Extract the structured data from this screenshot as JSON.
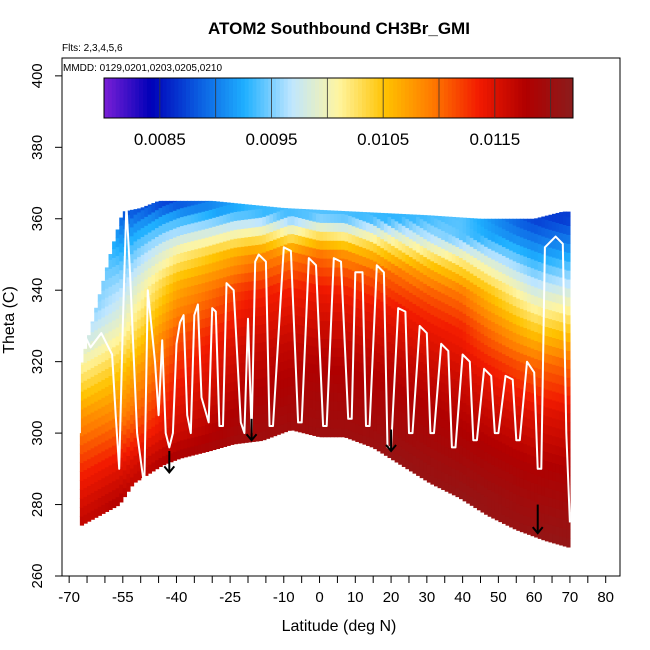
{
  "chart_data": {
    "type": "heatmap",
    "title": "ATOM2 Southbound CH3Br_GMI",
    "annotations": [
      "Flts: 2,3,4,5,6",
      "MMDD: 0129,0201,0203,0205,0210"
    ],
    "xlabel": "Latitude (deg N)",
    "ylabel": "Theta (C)",
    "xlim": [
      -72,
      84
    ],
    "ylim": [
      260,
      405
    ],
    "x_ticks": [
      -70,
      -65,
      -60,
      -55,
      -50,
      -45,
      -40,
      -35,
      -30,
      -25,
      -20,
      -15,
      -10,
      -5,
      0,
      5,
      10,
      15,
      20,
      25,
      30,
      35,
      40,
      45,
      50,
      55,
      60,
      65,
      70,
      75,
      80
    ],
    "x_tick_labels": [
      "-70",
      "",
      "",
      "-55",
      "",
      "",
      "-40",
      "",
      "",
      "-25",
      "",
      "",
      "-10",
      "",
      "0",
      "",
      "10",
      "",
      "20",
      "",
      "30",
      "",
      "40",
      "",
      "50",
      "",
      "60",
      "",
      "70",
      "",
      "80"
    ],
    "y_ticks": [
      260,
      280,
      300,
      320,
      340,
      360,
      380,
      400
    ],
    "y_tick_labels": [
      "260",
      "280",
      "300",
      "320",
      "340",
      "360",
      "380",
      "400"
    ],
    "colorbar": {
      "range": [
        0.008,
        0.0122
      ],
      "ticks": [
        0.0085,
        0.0095,
        0.0105,
        0.0115
      ],
      "tick_labels": [
        "0.0085",
        "0.0095",
        "0.0105",
        "0.0115"
      ],
      "colors": [
        "#7a1fd6",
        "#0000b8",
        "#0a5be0",
        "#1fb0ff",
        "#bfe6ff",
        "#fff5a0",
        "#ffc200",
        "#ff7a00",
        "#f21a00",
        "#b00000",
        "#8c1c1c"
      ]
    },
    "surface_theta": [
      [
        -67,
        274
      ],
      [
        -56,
        280
      ],
      [
        -52,
        286
      ],
      [
        -44,
        291
      ],
      [
        -39,
        293
      ],
      [
        -31,
        295
      ],
      [
        -24,
        297
      ],
      [
        -16,
        298
      ],
      [
        -8,
        301
      ],
      [
        0,
        299
      ],
      [
        7,
        299
      ],
      [
        15,
        296
      ],
      [
        23,
        291
      ],
      [
        31,
        286
      ],
      [
        39,
        282
      ],
      [
        47,
        277
      ],
      [
        55,
        273
      ],
      [
        63,
        270
      ],
      [
        70,
        268
      ]
    ],
    "model_curtain_top_theta": [
      [
        -68,
        314
      ],
      [
        -62,
        337
      ],
      [
        -58,
        352
      ],
      [
        -55,
        362
      ],
      [
        -50,
        363
      ],
      [
        -45,
        365
      ],
      [
        -30,
        365
      ],
      [
        -10,
        363
      ],
      [
        10,
        362
      ],
      [
        30,
        361
      ],
      [
        45,
        360
      ],
      [
        55,
        360
      ],
      [
        60,
        360
      ],
      [
        68,
        362
      ]
    ],
    "curtain_field": [
      {
        "lat": -66,
        "bands": [
          [
            274,
            0.0117
          ],
          [
            290,
            0.0113
          ],
          [
            305,
            0.0108
          ],
          [
            315,
            0.0103
          ],
          [
            325,
            0.0098
          ],
          [
            335,
            0.0094
          ]
        ]
      },
      {
        "lat": -55,
        "bands": [
          [
            280,
            0.0118
          ],
          [
            293,
            0.0114
          ],
          [
            305,
            0.0109
          ],
          [
            318,
            0.0105
          ],
          [
            330,
            0.01
          ],
          [
            345,
            0.0095
          ],
          [
            358,
            0.009
          ],
          [
            365,
            0.0086
          ]
        ]
      },
      {
        "lat": -40,
        "bands": [
          [
            291,
            0.0119
          ],
          [
            300,
            0.0116
          ],
          [
            312,
            0.0114
          ],
          [
            328,
            0.0111
          ],
          [
            342,
            0.0106
          ],
          [
            352,
            0.01
          ],
          [
            360,
            0.0093
          ],
          [
            365,
            0.0087
          ]
        ]
      },
      {
        "lat": -20,
        "bands": [
          [
            297,
            0.012
          ],
          [
            310,
            0.0118
          ],
          [
            325,
            0.0116
          ],
          [
            340,
            0.0113
          ],
          [
            350,
            0.0108
          ],
          [
            356,
            0.0101
          ],
          [
            362,
            0.0093
          ]
        ]
      },
      {
        "lat": 0,
        "bands": [
          [
            299,
            0.012
          ],
          [
            310,
            0.0119
          ],
          [
            325,
            0.0117
          ],
          [
            340,
            0.0114
          ],
          [
            350,
            0.011
          ],
          [
            356,
            0.0102
          ],
          [
            361,
            0.0094
          ]
        ]
      },
      {
        "lat": 20,
        "bands": [
          [
            291,
            0.0121
          ],
          [
            305,
            0.0119
          ],
          [
            320,
            0.0117
          ],
          [
            335,
            0.0114
          ],
          [
            345,
            0.011
          ],
          [
            353,
            0.0102
          ],
          [
            360,
            0.0093
          ]
        ]
      },
      {
        "lat": 40,
        "bands": [
          [
            282,
            0.0121
          ],
          [
            300,
            0.0118
          ],
          [
            315,
            0.0116
          ],
          [
            330,
            0.0113
          ],
          [
            340,
            0.0109
          ],
          [
            348,
            0.0102
          ],
          [
            355,
            0.0094
          ]
        ]
      },
      {
        "lat": 60,
        "bands": [
          [
            270,
            0.0121
          ],
          [
            290,
            0.0118
          ],
          [
            305,
            0.0115
          ],
          [
            320,
            0.011
          ],
          [
            330,
            0.0104
          ],
          [
            340,
            0.0098
          ],
          [
            350,
            0.0092
          ],
          [
            360,
            0.0087
          ]
        ]
      }
    ],
    "flight_track_theta": [
      [
        -67,
        300
      ],
      [
        -67,
        330
      ],
      [
        -64,
        324
      ],
      [
        -61,
        328
      ],
      [
        -58,
        322
      ],
      [
        -57,
        305
      ],
      [
        -56,
        290
      ],
      [
        -55,
        330
      ],
      [
        -54,
        364
      ],
      [
        -53,
        345
      ],
      [
        -51,
        300
      ],
      [
        -49,
        285
      ],
      [
        -48,
        340
      ],
      [
        -46,
        320
      ],
      [
        -45,
        305
      ],
      [
        -44,
        326
      ],
      [
        -43,
        300
      ],
      [
        -42,
        296
      ],
      [
        -41,
        300
      ],
      [
        -40,
        325
      ],
      [
        -39,
        331
      ],
      [
        -38,
        333
      ],
      [
        -37,
        305
      ],
      [
        -36,
        300
      ],
      [
        -35,
        333
      ],
      [
        -34,
        336
      ],
      [
        -33,
        310
      ],
      [
        -31,
        303
      ],
      [
        -30,
        335
      ],
      [
        -29,
        334
      ],
      [
        -28,
        302
      ],
      [
        -27,
        302
      ],
      [
        -26,
        342
      ],
      [
        -24,
        340
      ],
      [
        -22,
        303
      ],
      [
        -21,
        300
      ],
      [
        -20,
        332
      ],
      [
        -19,
        300
      ],
      [
        -18,
        348
      ],
      [
        -17,
        350
      ],
      [
        -15,
        348
      ],
      [
        -14,
        302
      ],
      [
        -13,
        302
      ],
      [
        -10,
        352
      ],
      [
        -8,
        351
      ],
      [
        -6,
        303
      ],
      [
        -5,
        303
      ],
      [
        -3,
        349
      ],
      [
        -1,
        347
      ],
      [
        1,
        302
      ],
      [
        2,
        302
      ],
      [
        4,
        349
      ],
      [
        6,
        348
      ],
      [
        8,
        304
      ],
      [
        9,
        304
      ],
      [
        10,
        345
      ],
      [
        12,
        345
      ],
      [
        13,
        302
      ],
      [
        14,
        302
      ],
      [
        16,
        347
      ],
      [
        18,
        345
      ],
      [
        19,
        296
      ],
      [
        20,
        296
      ],
      [
        22,
        335
      ],
      [
        24,
        334
      ],
      [
        25,
        300
      ],
      [
        26,
        300
      ],
      [
        28,
        330
      ],
      [
        30,
        328
      ],
      [
        31,
        300
      ],
      [
        32,
        300
      ],
      [
        34,
        325
      ],
      [
        36,
        323
      ],
      [
        37,
        296
      ],
      [
        38,
        296
      ],
      [
        40,
        322
      ],
      [
        42,
        320
      ],
      [
        43,
        298
      ],
      [
        44,
        298
      ],
      [
        46,
        318
      ],
      [
        48,
        316
      ],
      [
        49,
        300
      ],
      [
        50,
        300
      ],
      [
        52,
        316
      ],
      [
        54,
        315
      ],
      [
        55,
        298
      ],
      [
        56,
        298
      ],
      [
        58,
        320
      ],
      [
        60,
        317
      ],
      [
        61,
        290
      ],
      [
        62,
        290
      ],
      [
        63,
        352
      ],
      [
        66,
        355
      ],
      [
        68,
        353
      ],
      [
        69,
        300
      ],
      [
        70,
        275
      ]
    ],
    "profile_arrows": [
      [
        -42,
        295,
        289
      ],
      [
        -19,
        304,
        298
      ],
      [
        20,
        301,
        295
      ],
      [
        61,
        280,
        272
      ]
    ]
  }
}
